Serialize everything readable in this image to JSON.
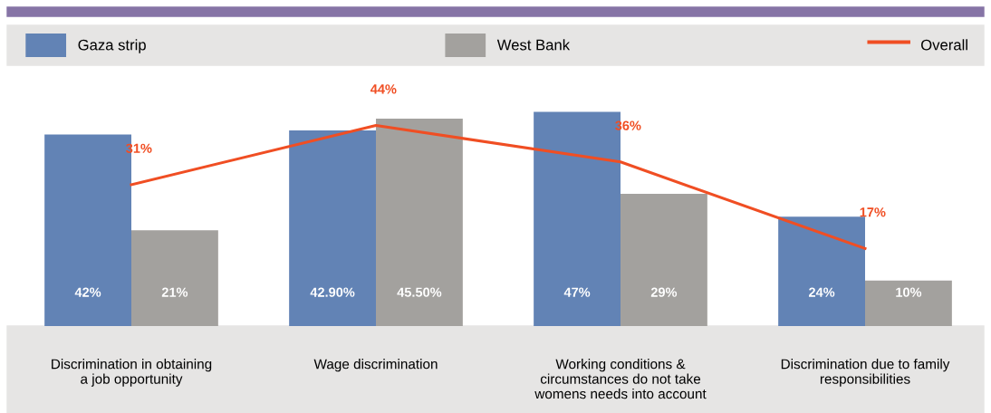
{
  "chart_data": {
    "type": "bar",
    "categories": [
      "Discrimination in obtaining\na job opportunity",
      "Wage discrimination",
      "Working conditions &\ncircumstances do not take\nwomens needs into account",
      "Discrimination due to family\nresponsibilities"
    ],
    "series": [
      {
        "name": "Gaza strip",
        "color": "#6283b5",
        "values": [
          42,
          42.9,
          47,
          24
        ],
        "value_labels": [
          "42%",
          "42.90%",
          "47%",
          "24%"
        ]
      },
      {
        "name": "West Bank",
        "color": "#a3a19e",
        "values": [
          21,
          45.5,
          29,
          10
        ],
        "value_labels": [
          "21%",
          "45.50%",
          "29%",
          "10%"
        ]
      },
      {
        "name": "Overall",
        "type": "line",
        "color": "#f04e23",
        "values": [
          31,
          44,
          36,
          17
        ],
        "value_labels": [
          "31%",
          "44%",
          "36%",
          "17%"
        ]
      }
    ],
    "legend": "top",
    "grid": false,
    "marker": "none",
    "line_style": "solid"
  }
}
